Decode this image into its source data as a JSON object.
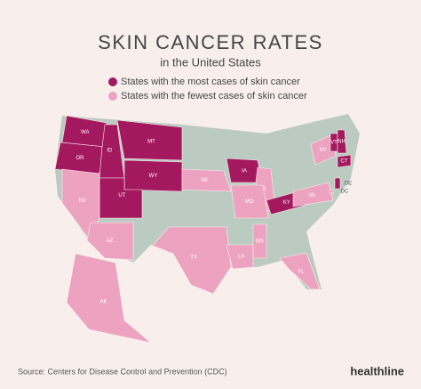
{
  "header": {
    "title": "SKIN CANCER RATES",
    "subtitle": "in the United States"
  },
  "legend": [
    {
      "label": "States with the most cases of skin cancer",
      "color": "#a3185f"
    },
    {
      "label": "States with the fewest cases of skin cancer",
      "color": "#eda3bf"
    }
  ],
  "states": [
    {
      "label": "WA",
      "color": "#a3185f"
    },
    {
      "label": "OR",
      "color": "#a3185f"
    },
    {
      "label": "ID",
      "color": "#a3185f"
    },
    {
      "label": "MT",
      "color": "#a3185f"
    },
    {
      "label": "WY",
      "color": "#a3185f"
    },
    {
      "label": "UT",
      "color": "#a3185f"
    },
    {
      "label": "NV",
      "color": "#eda3bf"
    },
    {
      "label": "AZ",
      "color": "#eda3bf"
    },
    {
      "label": "NE",
      "color": "#eda3bf"
    },
    {
      "label": "IA",
      "color": "#a3185f"
    },
    {
      "label": "IL",
      "color": "#eda3bf"
    },
    {
      "label": "MO",
      "color": "#eda3bf"
    },
    {
      "label": "KY",
      "color": "#a3185f"
    },
    {
      "label": "TX",
      "color": "#eda3bf"
    },
    {
      "label": "LA",
      "color": "#eda3bf"
    },
    {
      "label": "MS",
      "color": "#eda3bf"
    },
    {
      "label": "FL",
      "color": "#eda3bf"
    },
    {
      "label": "AK",
      "color": "#eda3bf"
    },
    {
      "label": "NY",
      "color": "#eda3bf"
    },
    {
      "label": "VT",
      "color": "#a3185f"
    },
    {
      "label": "NH",
      "color": "#a3185f"
    },
    {
      "label": "CT",
      "color": "#a3185f"
    },
    {
      "label": "VA",
      "color": "#eda3bf"
    },
    {
      "label": "DE",
      "color": "#a3185f"
    },
    {
      "label": "DC",
      "color": "#eda3bf"
    }
  ],
  "footer": {
    "source": "Source: Centers for Disease Control and Prevention (CDC)",
    "brand": "healthline"
  }
}
